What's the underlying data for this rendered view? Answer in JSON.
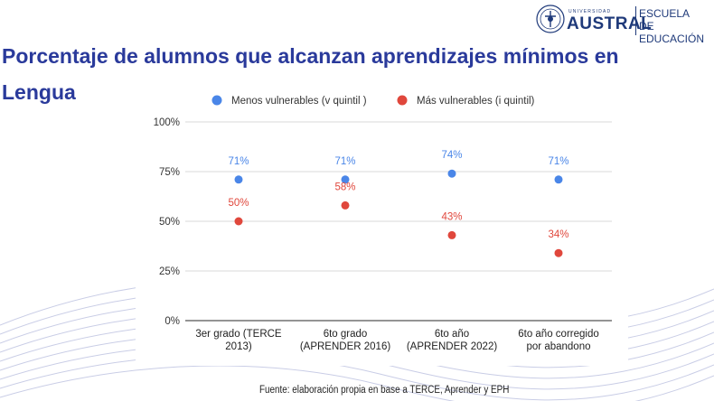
{
  "title": "Porcentaje de alumnos que alcanzan aprendizajes mínimos en Lengua",
  "logo": {
    "university_small": "UNIVERSIDAD",
    "brand": "AUSTRAL",
    "school_line1": "ESCUELA",
    "school_line2": "DE EDUCACIÓN"
  },
  "footer": "Fuente: elaboración propia en base a TERCE, Aprender y EPH",
  "colors": {
    "title": "#2a3a9b",
    "series_blue": "#4a86e8",
    "series_red": "#e0473c",
    "grid": "#d9d9d9"
  },
  "chart_data": {
    "type": "scatter",
    "title": "",
    "xlabel": "",
    "ylabel": "",
    "ylim": [
      0,
      100
    ],
    "yticks": [
      "0%",
      "25%",
      "50%",
      "75%",
      "100%"
    ],
    "ytick_values": [
      0,
      25,
      50,
      75,
      100
    ],
    "categories": [
      [
        "3er grado (TERCE",
        "2013)"
      ],
      [
        "6to grado",
        "(APRENDER 2016)"
      ],
      [
        "6to año",
        "(APRENDER 2022)"
      ],
      [
        "6to año corregido",
        "por abandono"
      ]
    ],
    "legend_position": "top",
    "series": [
      {
        "name": "Menos vulnerables (v quintil )",
        "color": "#4a86e8",
        "values": [
          71,
          71,
          74,
          71
        ],
        "labels": [
          "71%",
          "71%",
          "74%",
          "71%"
        ]
      },
      {
        "name": "Más vulnerables (i quintil)",
        "color": "#e0473c",
        "values": [
          50,
          58,
          43,
          34
        ],
        "labels": [
          "50%",
          "58%",
          "43%",
          "34%"
        ]
      }
    ]
  }
}
